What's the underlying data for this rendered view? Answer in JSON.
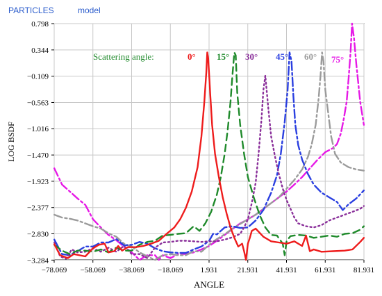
{
  "header": {
    "title": "PARTICLES",
    "subtitle": "model",
    "color": "#2b5ccc"
  },
  "chart_data": {
    "type": "line",
    "xlabel": "ANGLE",
    "ylabel": "LOG BSDF",
    "xlim": [
      -78.069,
      81.931
    ],
    "ylim": [
      -3.28,
      0.798
    ],
    "xticks": [
      -78.069,
      -58.069,
      -38.069,
      -18.069,
      1.931,
      21.931,
      41.931,
      61.931,
      81.931
    ],
    "xtick_labels": [
      "−78.069",
      "−58.069",
      "−38.069",
      "−18.069",
      "1.931",
      "21.931",
      "41.931",
      "61.931",
      "81.931"
    ],
    "yticks": [
      0.798,
      0.344,
      -0.109,
      -0.563,
      -1.016,
      -1.47,
      -1.923,
      -2.377,
      -2.83,
      -3.284
    ],
    "ytick_labels": [
      "0.798",
      "0.344",
      "−0.109",
      "−0.563",
      "−1.016",
      "−1.470",
      "−1.923",
      "−2.377",
      "−2.830",
      "−3.284"
    ],
    "grid": true,
    "legend_title": "Scattering angle:",
    "legend_position": "top",
    "series": [
      {
        "name": "0°",
        "color": "#ee1c1c",
        "dash": "solid",
        "x": [
          -78.0,
          -75.0,
          -71.0,
          -68.0,
          -62.0,
          -58.0,
          -55.0,
          -52.0,
          -50.0,
          -47.0,
          -45.0,
          -43.0,
          -40.0,
          -36.0,
          -32.0,
          -28.0,
          -24.0,
          -20.0,
          -16.0,
          -13.0,
          -10.0,
          -7.0,
          -4.0,
          -2.0,
          -0.5,
          0.5,
          1.0,
          1.5,
          2.5,
          3.5,
          5.0,
          7.0,
          9.0,
          11.0,
          13.0,
          15.0,
          17.0,
          19.0,
          20.0,
          21.0,
          22.0,
          23.0,
          24.0,
          26.0,
          30.0,
          34.0,
          38.0,
          42.0,
          46.0,
          50.0,
          52.0,
          54.0,
          56.0,
          60.0,
          66.0,
          72.0,
          76.0,
          80.0,
          81.9
        ],
        "y": [
          -3.01,
          -3.2,
          -3.25,
          -3.18,
          -3.22,
          -3.08,
          -3.02,
          -3.0,
          -3.15,
          -3.13,
          -3.04,
          -3.12,
          -3.06,
          -3.06,
          -3.04,
          -3.0,
          -2.95,
          -2.83,
          -2.72,
          -2.58,
          -2.38,
          -2.1,
          -1.68,
          -1.15,
          -0.55,
          -0.05,
          0.3,
          0.2,
          -0.4,
          -0.95,
          -1.45,
          -1.85,
          -2.2,
          -2.48,
          -2.72,
          -2.9,
          -3.05,
          -3.0,
          -3.13,
          -3.3,
          -3.0,
          -2.9,
          -2.78,
          -2.74,
          -2.88,
          -2.96,
          -2.98,
          -3.0,
          -2.96,
          -3.04,
          -2.86,
          -3.13,
          -3.1,
          -3.14,
          -3.13,
          -3.12,
          -3.1,
          -2.97,
          -2.9
        ]
      },
      {
        "name": "15°",
        "color": "#1f8a2b",
        "dash": "10,6",
        "x": [
          -78.0,
          -74.0,
          -70.0,
          -66.0,
          -62.0,
          -58.0,
          -54.0,
          -50.0,
          -46.0,
          -42.0,
          -38.0,
          -34.0,
          -30.0,
          -26.0,
          -22.0,
          -18.0,
          -14.0,
          -10.0,
          -6.0,
          -3.0,
          0.0,
          3.0,
          6.0,
          8.0,
          10.0,
          11.5,
          13.0,
          14.0,
          15.0,
          15.7,
          16.5,
          18.0,
          20.0,
          22.0,
          25.0,
          28.0,
          31.0,
          34.0,
          37.0,
          40.0,
          41.0,
          42.0,
          44.0,
          48.0,
          52.0,
          56.0,
          60.0,
          64.0,
          68.0,
          72.0,
          76.0,
          80.0,
          81.9
        ],
        "y": [
          -3.02,
          -3.12,
          -3.18,
          -3.12,
          -3.12,
          -3.14,
          -3.1,
          -3.15,
          -3.07,
          -3.12,
          -3.12,
          -3.02,
          -2.97,
          -2.95,
          -2.86,
          -2.85,
          -2.83,
          -2.82,
          -2.7,
          -2.78,
          -2.65,
          -2.45,
          -2.15,
          -1.85,
          -1.45,
          -1.05,
          -0.55,
          -0.1,
          0.3,
          0.25,
          -0.4,
          -0.95,
          -1.45,
          -1.85,
          -2.2,
          -2.5,
          -2.72,
          -2.85,
          -2.86,
          -3.0,
          -3.2,
          -2.95,
          -2.87,
          -2.85,
          -2.86,
          -2.9,
          -2.88,
          -2.86,
          -2.88,
          -2.83,
          -2.82,
          -2.76,
          -2.7
        ]
      },
      {
        "name": "30°",
        "color": "#8a2f9a",
        "dash": "2,4",
        "x": [
          -78.0,
          -75.0,
          -72.0,
          -69.0,
          -66.0,
          -62.0,
          -58.0,
          -54.0,
          -50.0,
          -46.0,
          -42.0,
          -38.0,
          -34.0,
          -30.0,
          -26.0,
          -22.0,
          -18.0,
          -14.0,
          -10.0,
          -6.0,
          -2.0,
          2.0,
          6.0,
          10.0,
          14.0,
          18.0,
          20.0,
          22.0,
          24.0,
          26.0,
          27.5,
          29.0,
          30.0,
          31.0,
          32.5,
          34.0,
          36.0,
          38.0,
          40.0,
          42.0,
          44.0,
          46.0,
          48.0,
          52.0,
          56.0,
          60.0,
          64.0,
          68.0,
          72.0,
          76.0,
          80.0,
          81.9
        ],
        "y": [
          -2.98,
          -3.22,
          -3.26,
          -3.1,
          -3.15,
          -3.14,
          -3.08,
          -3.14,
          -3.07,
          -3.14,
          -3.04,
          -3.18,
          -3.18,
          -3.25,
          -3.07,
          -2.98,
          -2.97,
          -2.95,
          -2.95,
          -2.96,
          -2.97,
          -2.96,
          -2.96,
          -2.93,
          -2.89,
          -2.83,
          -2.72,
          -2.58,
          -2.3,
          -1.95,
          -1.45,
          -0.85,
          -0.35,
          -0.1,
          -0.65,
          -1.15,
          -1.5,
          -1.8,
          -2.05,
          -2.25,
          -2.4,
          -2.55,
          -2.65,
          -2.7,
          -2.72,
          -2.68,
          -2.6,
          -2.55,
          -2.5,
          -2.45,
          -2.4,
          -2.35
        ]
      },
      {
        "name": "45°",
        "color": "#2a3fe0",
        "dash": "12,4,3,4",
        "x": [
          -78.0,
          -74.0,
          -70.0,
          -66.0,
          -62.0,
          -58.0,
          -54.0,
          -50.0,
          -46.0,
          -42.0,
          -38.0,
          -34.0,
          -30.0,
          -26.0,
          -22.0,
          -18.0,
          -14.0,
          -10.0,
          -6.0,
          -2.0,
          2.0,
          4.0,
          6.0,
          10.0,
          14.0,
          18.0,
          22.0,
          26.0,
          30.0,
          34.0,
          37.0,
          39.0,
          41.0,
          42.5,
          43.5,
          44.5,
          45.5,
          46.5,
          48.0,
          50.0,
          53.0,
          56.0,
          60.0,
          64.0,
          68.0,
          71.0,
          74.0,
          78.0,
          81.9
        ],
        "y": [
          -2.93,
          -3.18,
          -3.2,
          -3.13,
          -3.05,
          -3.05,
          -2.98,
          -2.98,
          -2.92,
          -3.03,
          -3.02,
          -2.97,
          -3.0,
          -3.08,
          -3.13,
          -3.15,
          -3.16,
          -3.16,
          -3.1,
          -3.05,
          -2.95,
          -2.83,
          -2.84,
          -2.72,
          -2.7,
          -2.73,
          -2.72,
          -2.6,
          -2.42,
          -2.12,
          -1.82,
          -1.45,
          -0.9,
          -0.35,
          0.3,
          0.15,
          -0.45,
          -0.95,
          -1.3,
          -1.55,
          -1.8,
          -1.98,
          -2.12,
          -2.2,
          -2.28,
          -2.42,
          -2.32,
          -2.22,
          -2.08
        ]
      },
      {
        "name": "60°",
        "color": "#9b9b9b",
        "dash": "12,4,3,4",
        "x": [
          -78.0,
          -74.0,
          -70.0,
          -66.0,
          -62.0,
          -58.0,
          -54.0,
          -50.0,
          -46.0,
          -42.0,
          -38.0,
          -34.0,
          -30.0,
          -26.0,
          -22.0,
          -18.0,
          -14.0,
          -10.0,
          -6.0,
          -2.0,
          2.0,
          6.0,
          10.0,
          14.0,
          18.0,
          22.0,
          26.0,
          30.0,
          34.0,
          38.0,
          42.0,
          46.0,
          50.0,
          53.0,
          55.0,
          57.0,
          58.5,
          59.5,
          60.3,
          61.0,
          62.0,
          63.5,
          65.0,
          67.0,
          70.0,
          74.0,
          78.0,
          81.9
        ],
        "y": [
          -2.5,
          -2.55,
          -2.57,
          -2.6,
          -2.65,
          -2.7,
          -2.74,
          -2.82,
          -2.88,
          -3.0,
          -3.05,
          -3.15,
          -3.22,
          -3.28,
          -3.2,
          -3.18,
          -3.2,
          -3.2,
          -3.13,
          -3.14,
          -3.02,
          -2.92,
          -2.84,
          -2.74,
          -2.66,
          -2.58,
          -2.5,
          -2.4,
          -2.3,
          -2.2,
          -2.05,
          -1.9,
          -1.72,
          -1.5,
          -1.28,
          -0.95,
          -0.5,
          -0.1,
          0.3,
          0.15,
          -0.35,
          -0.75,
          -1.15,
          -1.45,
          -1.6,
          -1.68,
          -1.72,
          -1.74
        ]
      },
      {
        "name": "75°",
        "color": "#e619e6",
        "dash": "12,4,3,4",
        "x": [
          -78.0,
          -74.0,
          -70.0,
          -66.0,
          -62.0,
          -58.0,
          -54.0,
          -50.0,
          -46.0,
          -42.0,
          -38.0,
          -34.0,
          -30.0,
          -26.0,
          -24.0,
          -22.0,
          -18.0,
          -14.0,
          -10.0,
          -6.0,
          -2.0,
          2.0,
          6.0,
          10.0,
          14.0,
          18.0,
          22.0,
          26.0,
          30.0,
          34.0,
          38.0,
          42.0,
          46.0,
          50.0,
          54.0,
          58.0,
          62.0,
          66.0,
          68.0,
          70.0,
          71.5,
          73.0,
          74.0,
          75.0,
          75.8,
          76.8,
          78.0,
          80.0,
          81.9
        ],
        "y": [
          -1.7,
          -1.98,
          -2.1,
          -2.22,
          -2.33,
          -2.58,
          -2.72,
          -2.85,
          -2.94,
          -3.05,
          -3.15,
          -3.28,
          -3.2,
          -3.2,
          -3.35,
          -3.2,
          -3.25,
          -3.18,
          -3.18,
          -3.15,
          -3.1,
          -3.04,
          -2.95,
          -2.85,
          -2.75,
          -2.65,
          -2.58,
          -2.5,
          -2.4,
          -2.3,
          -2.2,
          -2.1,
          -1.98,
          -1.85,
          -1.7,
          -1.55,
          -1.42,
          -1.35,
          -1.28,
          -1.1,
          -0.85,
          -0.55,
          -0.15,
          0.3,
          0.8,
          0.55,
          0.1,
          -0.55,
          -0.95
        ]
      }
    ]
  }
}
